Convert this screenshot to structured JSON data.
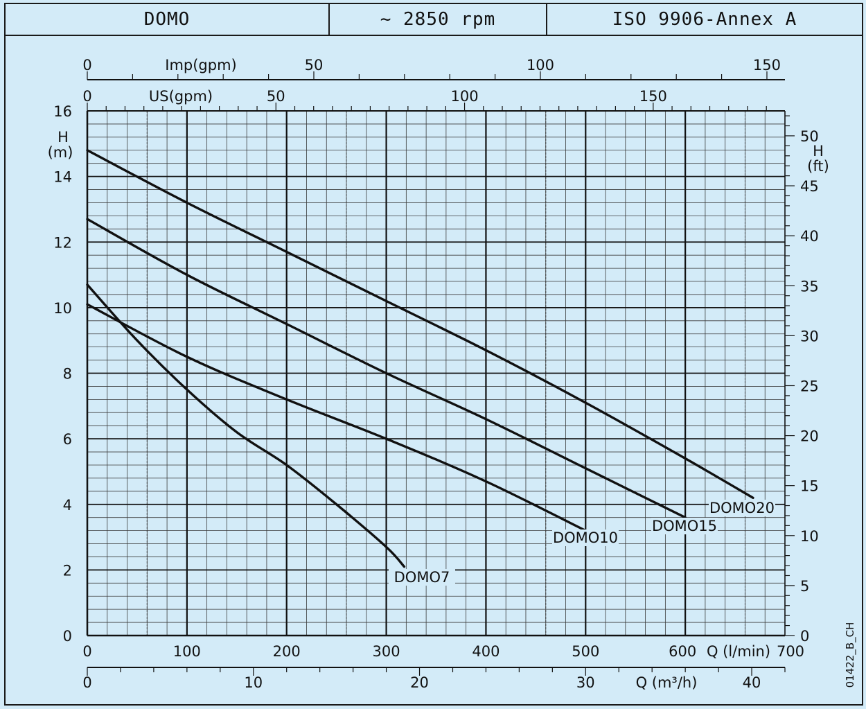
{
  "header": {
    "model": "DOMO",
    "speed": "~ 2850 rpm",
    "standard": "ISO 9906-Annex A"
  },
  "chart_data": {
    "type": "line",
    "title": "",
    "xlabel": "Q (l/min)",
    "ylabel": "H (m)",
    "xlim": [
      0,
      700
    ],
    "ylim": [
      0,
      16
    ],
    "grid": true,
    "x_ticks": [
      "0",
      "100",
      "200",
      "300",
      "400",
      "500",
      "600",
      "700"
    ],
    "y_ticks": [
      "0",
      "2",
      "4",
      "6",
      "8",
      "10",
      "12",
      "14",
      "16"
    ],
    "y_left_label_top": "H",
    "y_left_label_unit": "(m)",
    "right_axis": {
      "label_top": "H",
      "label_unit": "(ft)",
      "ticks": [
        "0",
        "5",
        "10",
        "15",
        "20",
        "25",
        "30",
        "35",
        "40",
        "45",
        "50"
      ]
    },
    "top_axis_imp": {
      "label": "Imp(gpm)",
      "ticks": [
        "0",
        "50",
        "100",
        "150"
      ]
    },
    "top_axis_us": {
      "label": "US(gpm)",
      "ticks": [
        "0",
        "50",
        "100",
        "150"
      ]
    },
    "bottom_axis_m3h": {
      "label": "Q (m³/h)",
      "ticks": [
        "0",
        "10",
        "20",
        "30",
        "40"
      ]
    },
    "series": [
      {
        "name": "DOMO7",
        "x": [
          0,
          50,
          100,
          150,
          200,
          250,
          300,
          318
        ],
        "y": [
          10.7,
          9.0,
          7.5,
          6.2,
          5.2,
          4.0,
          2.7,
          2.1
        ]
      },
      {
        "name": "DOMO10",
        "x": [
          0,
          100,
          200,
          300,
          400,
          500
        ],
        "y": [
          10.1,
          8.5,
          7.2,
          6.0,
          4.7,
          3.2
        ]
      },
      {
        "name": "DOMO15",
        "x": [
          0,
          100,
          200,
          300,
          400,
          500,
          600
        ],
        "y": [
          12.7,
          11.0,
          9.5,
          8.0,
          6.6,
          5.1,
          3.6
        ]
      },
      {
        "name": "DOMO20",
        "x": [
          0,
          100,
          200,
          300,
          400,
          500,
          600,
          668
        ],
        "y": [
          14.8,
          13.2,
          11.7,
          10.2,
          8.7,
          7.1,
          5.4,
          4.2
        ]
      }
    ],
    "code": "01422_B_CH"
  }
}
